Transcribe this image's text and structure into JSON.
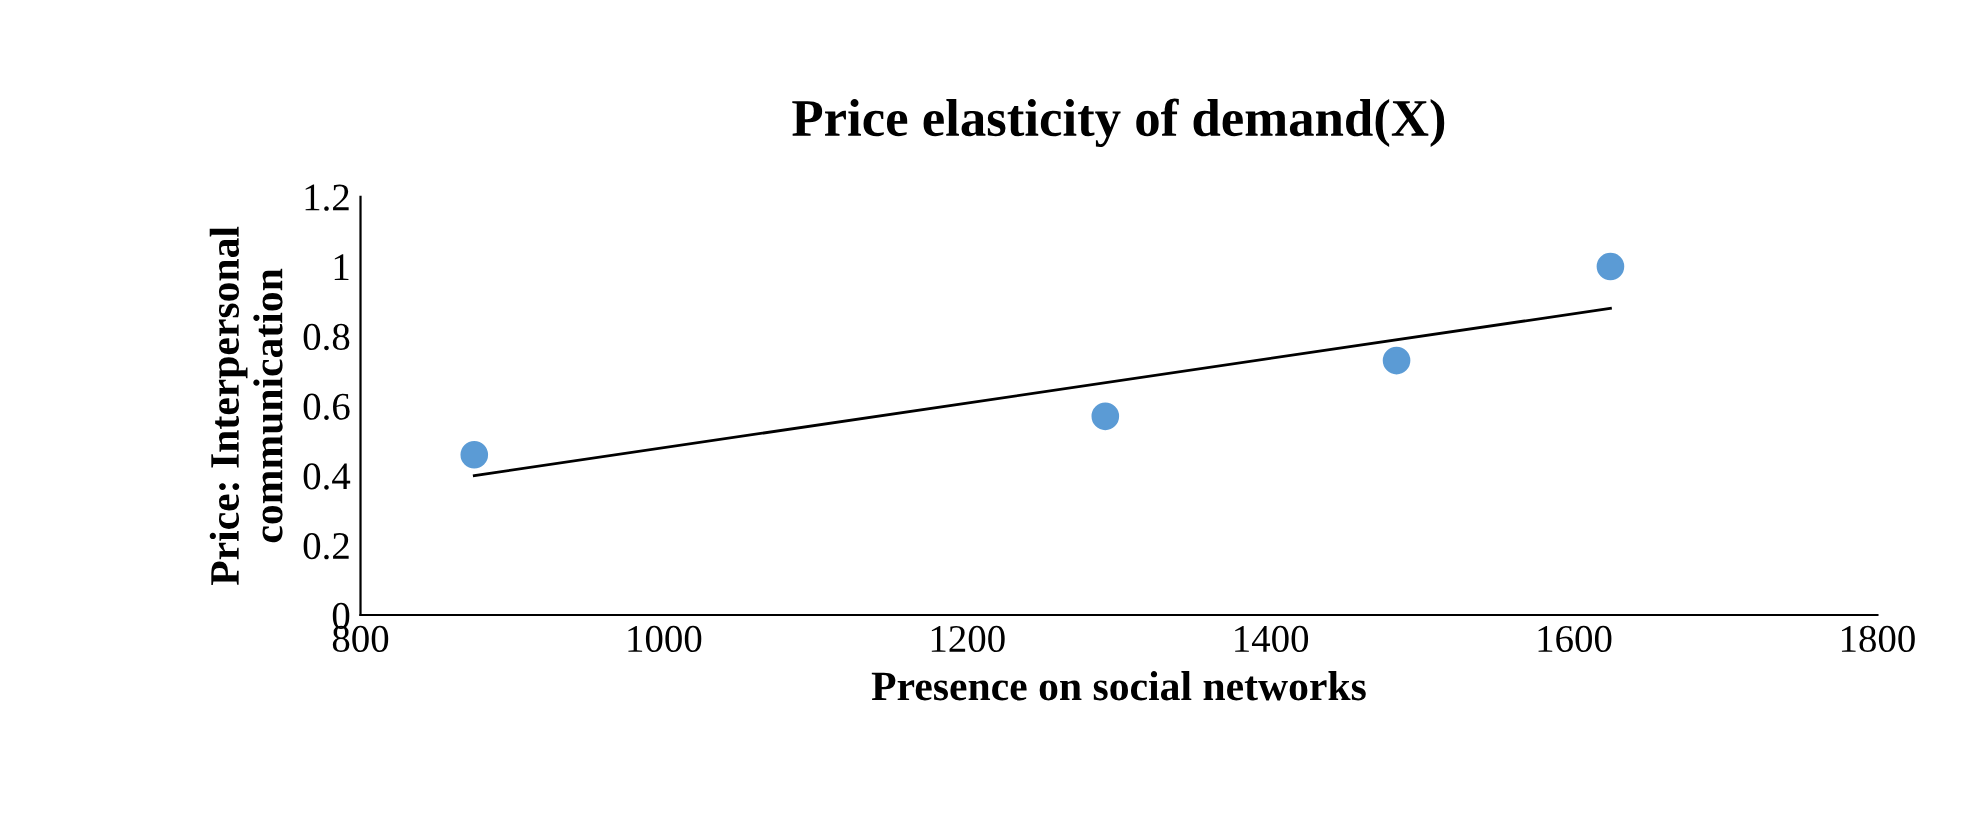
{
  "chart_data": {
    "type": "scatter",
    "title": "Price elasticity of demand(X)",
    "xlabel": "Presence on social networks",
    "ylabel": "Price: Interpersonal\ncommunication",
    "xlim": [
      800,
      1800
    ],
    "xticks": [
      800,
      1000,
      1200,
      1400,
      1600,
      1800
    ],
    "ylim": [
      0,
      1.2
    ],
    "yticks": [
      0,
      0.2,
      0.4,
      0.6,
      0.8,
      1,
      1.2
    ],
    "grid": false,
    "legend": false,
    "series": [
      {
        "marker": "circle",
        "color": "#5b9bd5",
        "x": [
          875,
          1291,
          1483,
          1624
        ],
        "values": [
          0.46,
          0.57,
          0.73,
          1.0
        ]
      },
      {
        "type": "line",
        "marker": "none",
        "color": "#000000",
        "x": [
          875,
          1624
        ],
        "values": [
          0.4,
          0.88
        ]
      }
    ]
  }
}
